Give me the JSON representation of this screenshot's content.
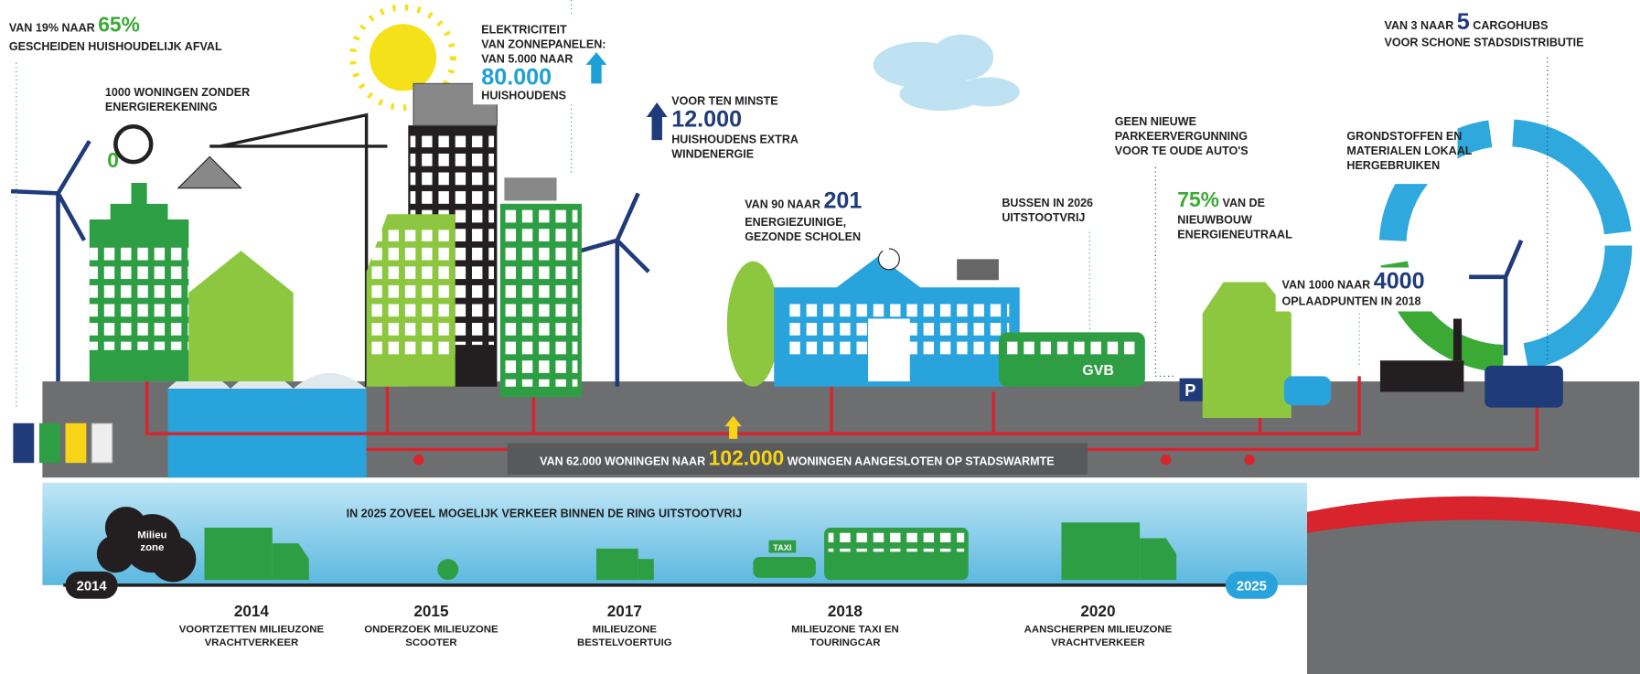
{
  "callouts": [
    {
      "prefix": "VAN 19% NAAR",
      "number": "65%",
      "lines": [
        "GESCHEIDEN HUISHOUDELIJK AFVAL"
      ]
    },
    {
      "lines": [
        "1000 WONINGEN ZONDER",
        "ENERGIEREKENING"
      ]
    },
    {
      "lines": [
        "ELEKTRICITEIT",
        "VAN ZONNEPANELEN:",
        "VAN 5.000 NAAR"
      ],
      "number": "80.000",
      "suffix": "HUISHOUDENS"
    },
    {
      "prefix": "VOOR TEN MINSTE",
      "number": "12.000",
      "lines": [
        "HUISHOUDENS EXTRA",
        "WINDENERGIE"
      ]
    },
    {
      "prefix": "VAN 90 NAAR",
      "number": "201",
      "lines": [
        "ENERGIEZUINIGE,",
        "GEZONDE SCHOLEN"
      ]
    },
    {
      "lines": [
        "GEEN NIEUWE",
        "PARKEERVERGUNNING",
        "VOOR TE OUDE AUTO'S"
      ]
    },
    {
      "lines": [
        "BUSSEN IN 2026",
        "UITSTOOTVRIJ"
      ]
    },
    {
      "number": "75%",
      "prefix": "VAN DE",
      "lines": [
        "NIEUWBOUW",
        "ENERGIENEUTRAAL"
      ]
    },
    {
      "lines": [
        "GRONDSTOFFEN EN",
        "MATERIALEN LOKAAL",
        "HERGEBRUIKEN"
      ]
    },
    {
      "prefix": "VAN 3 NAAR",
      "number": "5",
      "suffix": "CARGOHUBS",
      "lines": [
        "VOOR SCHONE STADSDISTRIBUTIE"
      ]
    },
    {
      "prefix": "VAN 1000 NAAR",
      "number": "4000",
      "lines": [
        "OPLAADPUNTEN IN 2018"
      ]
    },
    {
      "prefix": "VAN 62.000 WONINGEN NAAR",
      "number": "102.000",
      "suffix": "WONINGEN AANGESLOTEN OP STADSWARMTE"
    }
  ],
  "labels": {
    "gauge": "0",
    "milieuzone": [
      "Milieu",
      "zone"
    ],
    "bus": "GVB",
    "parking": "P",
    "taxi": "TAXI"
  },
  "timeline": {
    "title": "IN 2025 ZOVEEL MOGELIJK VERKEER BINNEN DE RING UITSTOOTVRIJ",
    "start": "2014",
    "end": "2025",
    "milestones": [
      {
        "year": "2014",
        "lines": [
          "VOORTZETTEN MILIEUZONE",
          "VRACHTVERKEER"
        ]
      },
      {
        "year": "2015",
        "lines": [
          "ONDERZOEK MILIEUZONE",
          "SCOOTER"
        ]
      },
      {
        "year": "2017",
        "lines": [
          "MILIEUZONE",
          "BESTELVOERTUIG"
        ]
      },
      {
        "year": "2018",
        "lines": [
          "MILIEUZONE TAXI EN",
          "TOURINGCAR"
        ]
      },
      {
        "year": "2020",
        "lines": [
          "AANSCHERPEN MILIEUZONE",
          "VRACHTVERKEER"
        ]
      }
    ]
  }
}
